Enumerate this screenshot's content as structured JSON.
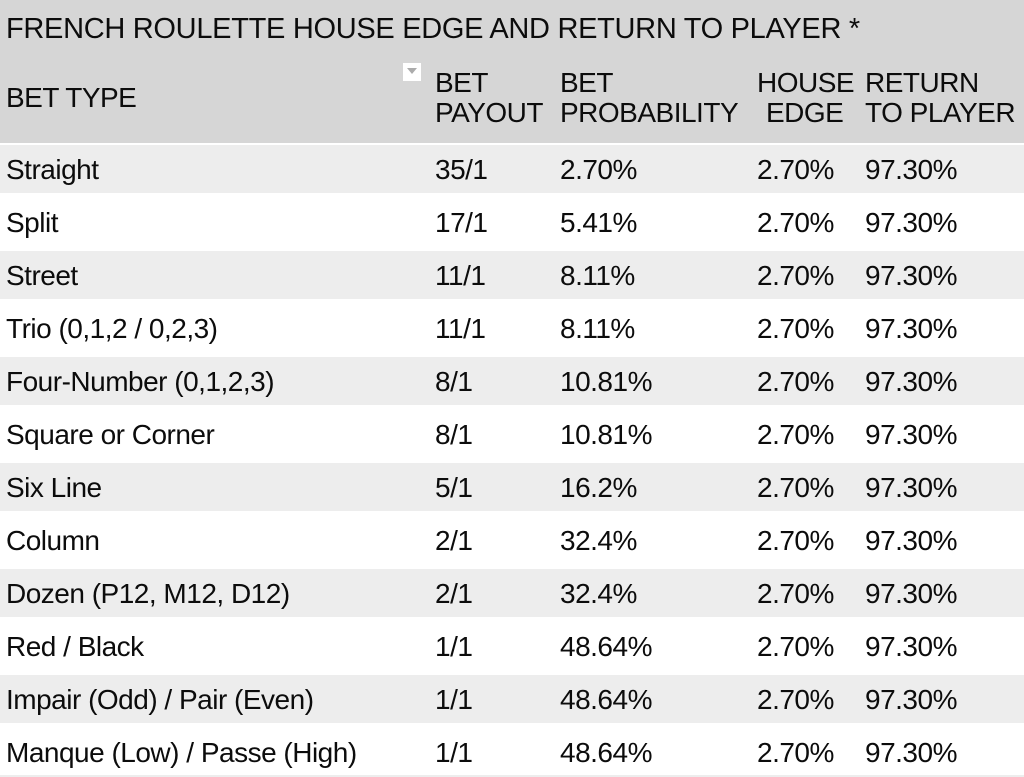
{
  "title": "FRENCH ROULETTE HOUSE EDGE AND RETURN TO PLAYER *",
  "table": {
    "headers": [
      {
        "id": "bet-type",
        "lines": [
          "BET TYPE"
        ]
      },
      {
        "id": "bet-payout",
        "lines": [
          "BET",
          "PAYOUT"
        ]
      },
      {
        "id": "bet-probability",
        "lines": [
          "BET",
          "PROBABILITY"
        ]
      },
      {
        "id": "house-edge",
        "lines": [
          "HOUSE",
          "EDGE"
        ]
      },
      {
        "id": "return-to-player",
        "lines": [
          "RETURN",
          "TO PLAYER"
        ]
      }
    ],
    "rows": [
      {
        "bet_type": "Straight",
        "bet_payout": "35/1",
        "bet_probability": "2.70%",
        "house_edge": "2.70%",
        "return_to_player": "97.30%"
      },
      {
        "bet_type": "Split",
        "bet_payout": "17/1",
        "bet_probability": "5.41%",
        "house_edge": "2.70%",
        "return_to_player": "97.30%"
      },
      {
        "bet_type": "Street",
        "bet_payout": "11/1",
        "bet_probability": "8.11%",
        "house_edge": "2.70%",
        "return_to_player": "97.30%"
      },
      {
        "bet_type": "Trio (0,1,2 / 0,2,3)",
        "bet_payout": "11/1",
        "bet_probability": "8.11%",
        "house_edge": "2.70%",
        "return_to_player": "97.30%"
      },
      {
        "bet_type": "Four-Number (0,1,2,3)",
        "bet_payout": "8/1",
        "bet_probability": "10.81%",
        "house_edge": "2.70%",
        "return_to_player": "97.30%"
      },
      {
        "bet_type": "Square or Corner",
        "bet_payout": "8/1",
        "bet_probability": "10.81%",
        "house_edge": "2.70%",
        "return_to_player": "97.30%"
      },
      {
        "bet_type": "Six Line",
        "bet_payout": "5/1",
        "bet_probability": "16.2%",
        "house_edge": "2.70%",
        "return_to_player": "97.30%"
      },
      {
        "bet_type": "Column",
        "bet_payout": "2/1",
        "bet_probability": "32.4%",
        "house_edge": "2.70%",
        "return_to_player": "97.30%"
      },
      {
        "bet_type": "Dozen (P12, M12, D12)",
        "bet_payout": "2/1",
        "bet_probability": "32.4%",
        "house_edge": "2.70%",
        "return_to_player": "97.30%"
      },
      {
        "bet_type": "Red / Black",
        "bet_payout": "1/1",
        "bet_probability": "48.64%",
        "house_edge": "2.70%",
        "return_to_player": "97.30%"
      },
      {
        "bet_type": "Impair (Odd) / Pair (Even)",
        "bet_payout": "1/1",
        "bet_probability": "48.64%",
        "house_edge": "2.70%",
        "return_to_player": "97.30%"
      },
      {
        "bet_type": "Manque (Low) / Passe (High)",
        "bet_payout": "1/1",
        "bet_probability": "48.64%",
        "house_edge": "2.70%",
        "return_to_player": "97.30%"
      }
    ]
  },
  "icons": {
    "filter_dropdown": "triangle-down"
  },
  "colors": {
    "header_bg": "#d6d6d6",
    "row_shaded": "#ededed",
    "row_white": "#ffffff",
    "text": "#0c0c0c",
    "dropdown_box": "#ffffff",
    "dropdown_triangle": "#ababab"
  }
}
